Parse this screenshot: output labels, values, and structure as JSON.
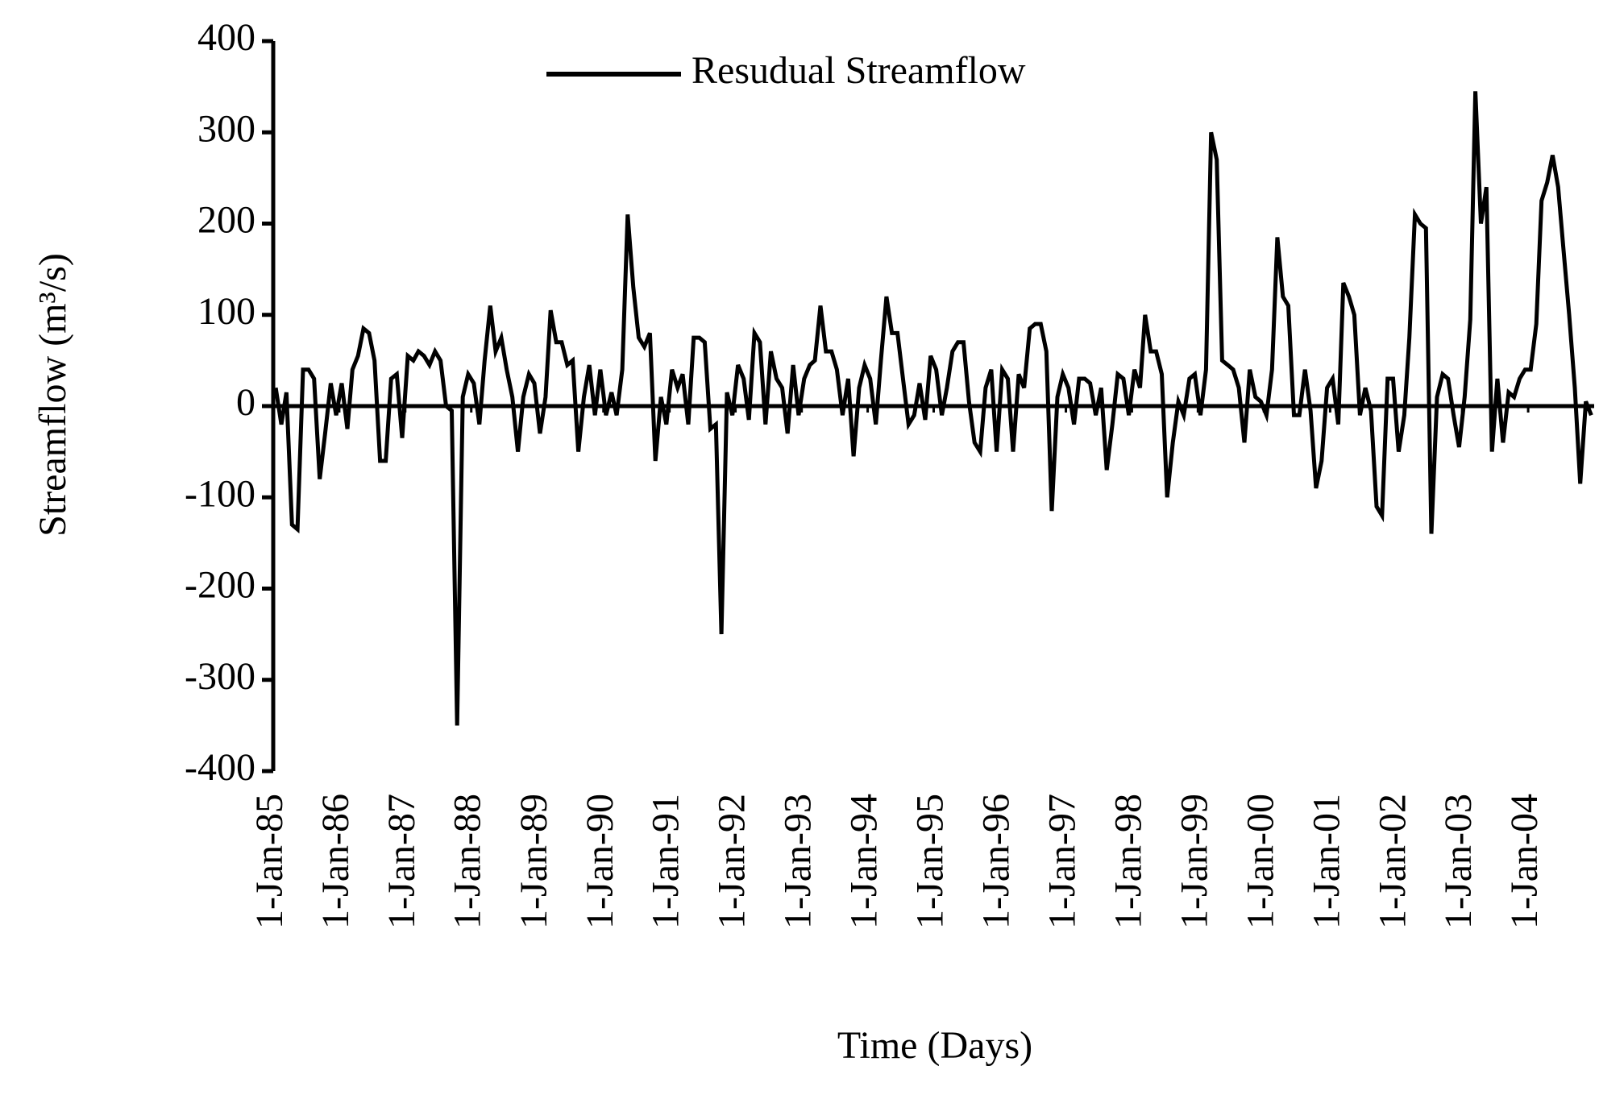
{
  "chart_data": {
    "type": "line",
    "xlabel": "Time (Days)",
    "ylabel": "Streamflow (m³/s)",
    "legend": "top",
    "grid": false,
    "xlim": [
      "1985-01-01",
      "2004-12-31"
    ],
    "xticks": [
      {
        "value": "1985-01-01",
        "label": "1-Jan-85"
      },
      {
        "value": "1986-01-01",
        "label": "1-Jan-86"
      },
      {
        "value": "1987-01-01",
        "label": "1-Jan-87"
      },
      {
        "value": "1988-01-01",
        "label": "1-Jan-88"
      },
      {
        "value": "1989-01-01",
        "label": "1-Jan-89"
      },
      {
        "value": "1990-01-01",
        "label": "1-Jan-90"
      },
      {
        "value": "1991-01-01",
        "label": "1-Jan-91"
      },
      {
        "value": "1992-01-01",
        "label": "1-Jan-92"
      },
      {
        "value": "1993-01-01",
        "label": "1-Jan-93"
      },
      {
        "value": "1994-01-01",
        "label": "1-Jan-94"
      },
      {
        "value": "1995-01-01",
        "label": "1-Jan-95"
      },
      {
        "value": "1996-01-01",
        "label": "1-Jan-96"
      },
      {
        "value": "1997-01-01",
        "label": "1-Jan-97"
      },
      {
        "value": "1998-01-01",
        "label": "1-Jan-98"
      },
      {
        "value": "1999-01-01",
        "label": "1-Jan-99"
      },
      {
        "value": "2000-01-01",
        "label": "1-Jan-00"
      },
      {
        "value": "2001-01-01",
        "label": "1-Jan-01"
      },
      {
        "value": "2002-01-01",
        "label": "1-Jan-02"
      },
      {
        "value": "2003-01-01",
        "label": "1-Jan-03"
      },
      {
        "value": "2004-01-01",
        "label": "1-Jan-04"
      }
    ],
    "ylim": [
      -400,
      400
    ],
    "yticks": [
      -400,
      -300,
      -200,
      -100,
      0,
      100,
      200,
      300,
      400
    ],
    "x": [
      "1985-01-15",
      "1985-02-15",
      "1985-03-15",
      "1985-04-15",
      "1985-05-15",
      "1985-06-15",
      "1985-07-15",
      "1985-08-15",
      "1985-09-15",
      "1985-10-15",
      "1985-11-15",
      "1985-12-15",
      "1986-01-15",
      "1986-02-15",
      "1986-03-15",
      "1986-04-15",
      "1986-05-15",
      "1986-06-15",
      "1986-07-15",
      "1986-08-15",
      "1986-09-15",
      "1986-10-15",
      "1986-11-15",
      "1986-12-15",
      "1987-01-15",
      "1987-02-15",
      "1987-03-15",
      "1987-04-15",
      "1987-05-15",
      "1987-06-15",
      "1987-07-15",
      "1987-08-15",
      "1987-09-15",
      "1987-10-15",
      "1987-11-15",
      "1987-12-15",
      "1988-01-15",
      "1988-02-15",
      "1988-03-15",
      "1988-04-15",
      "1988-05-15",
      "1988-06-15",
      "1988-07-15",
      "1988-08-15",
      "1988-09-15",
      "1988-10-15",
      "1988-11-15",
      "1988-12-15",
      "1989-01-15",
      "1989-02-15",
      "1989-03-15",
      "1989-04-15",
      "1989-05-15",
      "1989-06-15",
      "1989-07-15",
      "1989-08-15",
      "1989-09-15",
      "1989-10-15",
      "1989-11-15",
      "1989-12-15",
      "1990-01-15",
      "1990-02-15",
      "1990-03-15",
      "1990-04-15",
      "1990-05-15",
      "1990-06-15",
      "1990-07-15",
      "1990-08-15",
      "1990-09-15",
      "1990-10-15",
      "1990-11-15",
      "1990-12-15",
      "1991-01-15",
      "1991-02-15",
      "1991-03-15",
      "1991-04-15",
      "1991-05-15",
      "1991-06-15",
      "1991-07-15",
      "1991-08-15",
      "1991-09-15",
      "1991-10-15",
      "1991-11-15",
      "1991-12-15",
      "1992-01-15",
      "1992-02-15",
      "1992-03-15",
      "1992-04-15",
      "1992-05-15",
      "1992-06-15",
      "1992-07-15",
      "1992-08-15",
      "1992-09-15",
      "1992-10-15",
      "1992-11-15",
      "1992-12-15",
      "1993-01-15",
      "1993-02-15",
      "1993-03-15",
      "1993-04-15",
      "1993-05-15",
      "1993-06-15",
      "1993-07-15",
      "1993-08-15",
      "1993-09-15",
      "1993-10-15",
      "1993-11-15",
      "1993-12-15",
      "1994-01-15",
      "1994-02-15",
      "1994-03-15",
      "1994-04-15",
      "1994-05-15",
      "1994-06-15",
      "1994-07-15",
      "1994-08-15",
      "1994-09-15",
      "1994-10-15",
      "1994-11-15",
      "1994-12-15",
      "1995-01-15",
      "1995-02-15",
      "1995-03-15",
      "1995-04-15",
      "1995-05-15",
      "1995-06-15",
      "1995-07-15",
      "1995-08-15",
      "1995-09-15",
      "1995-10-15",
      "1995-11-15",
      "1995-12-15",
      "1996-01-15",
      "1996-02-15",
      "1996-03-15",
      "1996-04-15",
      "1996-05-15",
      "1996-06-15",
      "1996-07-15",
      "1996-08-15",
      "1996-09-15",
      "1996-10-15",
      "1996-11-15",
      "1996-12-15",
      "1997-01-15",
      "1997-02-15",
      "1997-03-15",
      "1997-04-15",
      "1997-05-15",
      "1997-06-15",
      "1997-07-15",
      "1997-08-15",
      "1997-09-15",
      "1997-10-15",
      "1997-11-15",
      "1997-12-15",
      "1998-01-15",
      "1998-02-15",
      "1998-03-15",
      "1998-04-15",
      "1998-05-15",
      "1998-06-15",
      "1998-07-15",
      "1998-08-15",
      "1998-09-15",
      "1998-10-15",
      "1998-11-15",
      "1998-12-15",
      "1999-01-15",
      "1999-02-15",
      "1999-03-15",
      "1999-04-15",
      "1999-05-15",
      "1999-06-15",
      "1999-07-15",
      "1999-08-15",
      "1999-09-15",
      "1999-10-15",
      "1999-11-15",
      "1999-12-15",
      "2000-01-15",
      "2000-02-15",
      "2000-03-15",
      "2000-04-15",
      "2000-05-15",
      "2000-06-15",
      "2000-07-15",
      "2000-08-15",
      "2000-09-15",
      "2000-10-15",
      "2000-11-15",
      "2000-12-15",
      "2001-01-15",
      "2001-02-15",
      "2001-03-15",
      "2001-04-15",
      "2001-05-15",
      "2001-06-15",
      "2001-07-15",
      "2001-08-15",
      "2001-09-15",
      "2001-10-15",
      "2001-11-15",
      "2001-12-15",
      "2002-01-15",
      "2002-02-15",
      "2002-03-15",
      "2002-04-15",
      "2002-05-15",
      "2002-06-15",
      "2002-07-15",
      "2002-08-15",
      "2002-09-15",
      "2002-10-15",
      "2002-11-15",
      "2002-12-15",
      "2003-01-15",
      "2003-02-15",
      "2003-03-15",
      "2003-04-15",
      "2003-05-15",
      "2003-06-15",
      "2003-07-15",
      "2003-08-15",
      "2003-09-15",
      "2003-10-15",
      "2003-11-15",
      "2003-12-15",
      "2004-01-15",
      "2004-02-15",
      "2004-03-15",
      "2004-04-15",
      "2004-05-15",
      "2004-06-15",
      "2004-07-15",
      "2004-08-15",
      "2004-09-15",
      "2004-10-15",
      "2004-11-15",
      "2004-12-15"
    ],
    "series": [
      {
        "name": "Resudual Streamflow",
        "color": "#000000",
        "values": [
          20,
          -20,
          15,
          -130,
          -135,
          40,
          40,
          30,
          -80,
          -30,
          25,
          -10,
          25,
          -25,
          40,
          55,
          85,
          80,
          50,
          -60,
          -60,
          30,
          35,
          -35,
          55,
          50,
          60,
          55,
          45,
          60,
          50,
          0,
          -5,
          -350,
          10,
          35,
          25,
          -20,
          50,
          110,
          60,
          75,
          40,
          10,
          -50,
          10,
          35,
          25,
          -30,
          10,
          105,
          70,
          70,
          45,
          50,
          -50,
          10,
          45,
          -10,
          40,
          -10,
          15,
          -10,
          40,
          210,
          130,
          75,
          65,
          80,
          -60,
          10,
          -20,
          40,
          20,
          35,
          -20,
          75,
          75,
          70,
          -25,
          -20,
          -250,
          15,
          -10,
          45,
          30,
          -15,
          80,
          70,
          -20,
          60,
          30,
          20,
          -30,
          45,
          -10,
          30,
          45,
          50,
          110,
          60,
          60,
          40,
          -10,
          30,
          -55,
          20,
          45,
          30,
          -20,
          50,
          120,
          80,
          80,
          30,
          -20,
          -10,
          25,
          -15,
          55,
          40,
          -10,
          20,
          60,
          70,
          70,
          5,
          -40,
          -50,
          20,
          40,
          -50,
          40,
          30,
          -50,
          35,
          20,
          85,
          90,
          90,
          60,
          -115,
          10,
          35,
          20,
          -20,
          30,
          30,
          25,
          -10,
          20,
          -70,
          -20,
          35,
          30,
          -10,
          40,
          20,
          100,
          60,
          60,
          35,
          -100,
          -40,
          5,
          -10,
          30,
          35,
          -10,
          40,
          300,
          270,
          50,
          45,
          40,
          20,
          -40,
          40,
          10,
          5,
          -10,
          40,
          185,
          120,
          110,
          -10,
          -10,
          40,
          -5,
          -90,
          -60,
          20,
          30,
          -20,
          135,
          120,
          100,
          -10,
          20,
          -5,
          -110,
          -120,
          30,
          30,
          -50,
          -10,
          75,
          210,
          200,
          195,
          -140,
          10,
          35,
          30,
          -10,
          -45,
          10,
          95,
          345,
          200,
          240,
          -50,
          30,
          -40,
          15,
          10,
          30,
          40,
          40,
          90,
          225,
          245,
          275,
          240,
          170,
          100,
          20,
          -85,
          5,
          -10
        ]
      }
    ]
  }
}
